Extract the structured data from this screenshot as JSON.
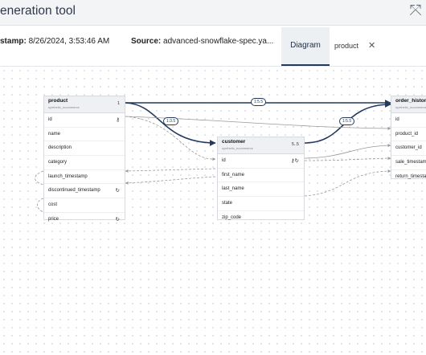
{
  "window": {
    "title": "eneration tool"
  },
  "info": {
    "timestamp_label": "stamp:",
    "timestamp_value": "8/26/2024, 3:53:46 AM",
    "source_label": "Source:",
    "source_value": "advanced-snowflake-spec.ya..."
  },
  "tabs": {
    "diagram": "Diagram",
    "product": "product"
  },
  "tables": {
    "product": {
      "name": "product",
      "schema": "synthetic_ecommerce",
      "cardinality": "1",
      "columns": [
        "id",
        "name",
        "description",
        "category",
        "launch_timestamp",
        "discontinued_timestamp",
        "cost",
        "price"
      ]
    },
    "customer": {
      "name": "customer",
      "schema": "synthetic_ecommerce",
      "cardinality": "5..5",
      "columns": [
        "id",
        "first_name",
        "last_name",
        "state",
        "zip_code"
      ]
    },
    "order_history": {
      "name": "order_history",
      "schema": "synthetic_ecommerce",
      "cardinality": "",
      "columns": [
        "id",
        "product_id",
        "customer_id",
        "sale_timestamp",
        "return_timestamp"
      ]
    }
  },
  "relationships": {
    "product_order": "1:5.5",
    "product_customer": "1:3.5",
    "customer_order": "1:5.5"
  },
  "icons": {
    "close": "close-x-icon",
    "tab_close": "close-icon",
    "key": "key-icon",
    "sequence": "sequence-icon"
  }
}
